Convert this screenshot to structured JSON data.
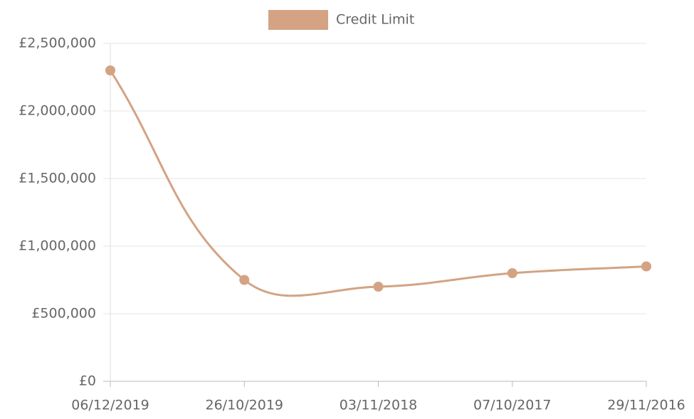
{
  "chart_data": {
    "type": "line",
    "categories": [
      "06/12/2019",
      "26/10/2019",
      "03/11/2018",
      "07/10/2017",
      "29/11/2016"
    ],
    "series": [
      {
        "name": "Credit Limit",
        "color": "#d3a384",
        "values": [
          2300000,
          750000,
          700000,
          800000,
          850000
        ]
      }
    ],
    "ylim": [
      0,
      2500000
    ],
    "yticks": [
      {
        "value": 0,
        "label": "£0"
      },
      {
        "value": 500000,
        "label": "£500,000"
      },
      {
        "value": 1000000,
        "label": "£1,000,000"
      },
      {
        "value": 1500000,
        "label": "£1,500,000"
      },
      {
        "value": 2000000,
        "label": "£2,000,000"
      },
      {
        "value": 2500000,
        "label": "£2,500,000"
      }
    ],
    "grid": true,
    "legend": "top"
  }
}
